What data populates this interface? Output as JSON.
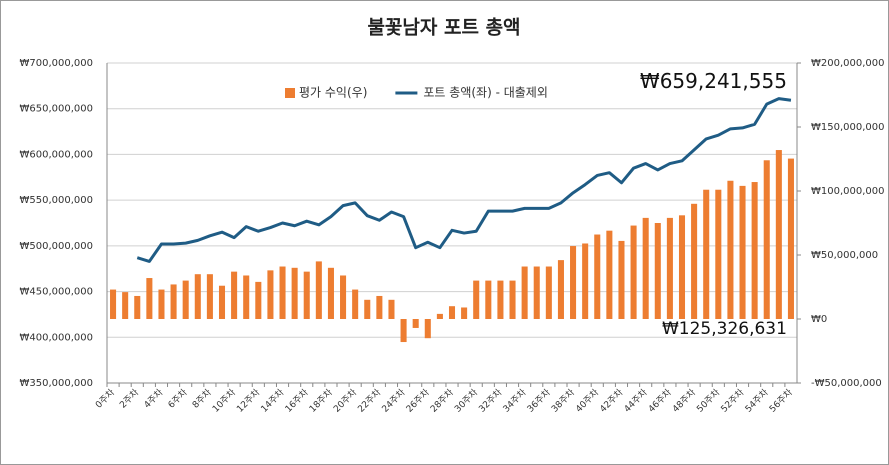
{
  "chart_data": {
    "type": "combo",
    "title": "불꽃남자 포트 총액",
    "categories": [
      "0주차",
      null,
      "2주차",
      null,
      "4주차",
      null,
      "6주차",
      null,
      "8주차",
      null,
      "10주차",
      null,
      "12주차",
      null,
      "14주차",
      null,
      "16주차",
      null,
      "18주차",
      null,
      "20주차",
      null,
      "22주차",
      null,
      "24주차",
      null,
      "26주차",
      null,
      "28주차",
      null,
      "30주차",
      null,
      "32주차",
      null,
      "34주차",
      null,
      "36주차",
      null,
      "38주차",
      null,
      "40주차",
      null,
      "42주차",
      null,
      "44주차",
      null,
      "46주차",
      null,
      "48주차",
      null,
      "50주차",
      null,
      "52주차",
      null,
      "54주차",
      null,
      "56주차"
    ],
    "series": [
      {
        "name": "평가 수익(우)",
        "type": "bar",
        "axis": "y2",
        "color": "#ed7d31",
        "values": [
          23000000,
          21000000,
          18000000,
          32000000,
          23000000,
          27000000,
          30000000,
          35000000,
          35000000,
          26000000,
          37000000,
          34000000,
          29000000,
          38000000,
          41000000,
          40000000,
          37000000,
          45000000,
          40000000,
          34000000,
          23000000,
          15000000,
          18000000,
          15000000,
          -18000000,
          -7000000,
          -15000000,
          4000000,
          10000000,
          9000000,
          30000000,
          30000000,
          30000000,
          30000000,
          41000000,
          41000000,
          41000000,
          46000000,
          57000000,
          59000000,
          66000000,
          69000000,
          61000000,
          73000000,
          79000000,
          75000000,
          79000000,
          81000000,
          90000000,
          101000000,
          101000000,
          108000000,
          104000000,
          107000000,
          124000000,
          132000000,
          125326631
        ],
        "value_labels": [
          null,
          null,
          null,
          null,
          null,
          null,
          null,
          null,
          null,
          null,
          null,
          null,
          null,
          null,
          null,
          null,
          null,
          null,
          null,
          null,
          null,
          null,
          null,
          null,
          null,
          null,
          null,
          null,
          null,
          null,
          null,
          null,
          null,
          null,
          null,
          null,
          null,
          null,
          null,
          null,
          null,
          null,
          null,
          null,
          null,
          null,
          null,
          null,
          null,
          null,
          null,
          null,
          null,
          null,
          null,
          null,
          "₩125,326,631"
        ]
      },
      {
        "name": "포트 총액(좌) - 대출제외",
        "type": "line",
        "axis": "y",
        "color": "#1f5c85",
        "values": [
          null,
          null,
          487000000,
          483000000,
          502000000,
          502000000,
          503000000,
          506000000,
          511000000,
          515000000,
          509000000,
          521000000,
          516000000,
          520000000,
          525000000,
          522000000,
          527000000,
          523000000,
          532000000,
          544000000,
          547000000,
          533000000,
          528000000,
          537000000,
          532000000,
          498000000,
          504000000,
          498000000,
          517000000,
          514000000,
          516000000,
          538000000,
          538000000,
          538000000,
          541000000,
          541000000,
          541000000,
          547000000,
          558000000,
          567000000,
          577000000,
          580000000,
          569000000,
          585000000,
          590000000,
          583000000,
          590000000,
          593000000,
          605000000,
          617000000,
          621000000,
          628000000,
          629000000,
          633000000,
          655000000,
          661000000,
          659241555
        ],
        "value_labels": [
          null,
          null,
          null,
          null,
          null,
          null,
          null,
          null,
          null,
          null,
          null,
          null,
          null,
          null,
          null,
          null,
          null,
          null,
          null,
          null,
          null,
          null,
          null,
          null,
          null,
          null,
          null,
          null,
          null,
          null,
          null,
          null,
          null,
          null,
          null,
          null,
          null,
          null,
          null,
          null,
          null,
          null,
          null,
          null,
          null,
          null,
          null,
          null,
          null,
          null,
          null,
          null,
          null,
          null,
          null,
          null,
          "₩659,241,555"
        ]
      }
    ],
    "ylim": [
      350000000,
      700000000
    ],
    "yticks": [
      {
        "value": 350000000,
        "label": "₩350,000,000"
      },
      {
        "value": 400000000,
        "label": "₩400,000,000"
      },
      {
        "value": 450000000,
        "label": "₩450,000,000"
      },
      {
        "value": 500000000,
        "label": "₩500,000,000"
      },
      {
        "value": 550000000,
        "label": "₩550,000,000"
      },
      {
        "value": 600000000,
        "label": "₩600,000,000"
      },
      {
        "value": 650000000,
        "label": "₩650,000,000"
      },
      {
        "value": 700000000,
        "label": "₩700,000,000"
      }
    ],
    "y2lim": [
      -50000000,
      200000000
    ],
    "y2ticks": [
      {
        "value": -50000000,
        "label": "-₩50,000,000"
      },
      {
        "value": 0,
        "label": "₩0"
      },
      {
        "value": 50000000,
        "label": "₩50,000,000"
      },
      {
        "value": 100000000,
        "label": "₩100,000,000"
      },
      {
        "value": 150000000,
        "label": "₩150,000,000"
      },
      {
        "value": 200000000,
        "label": "₩200,000,000"
      }
    ],
    "grid": true,
    "legend": "top"
  }
}
